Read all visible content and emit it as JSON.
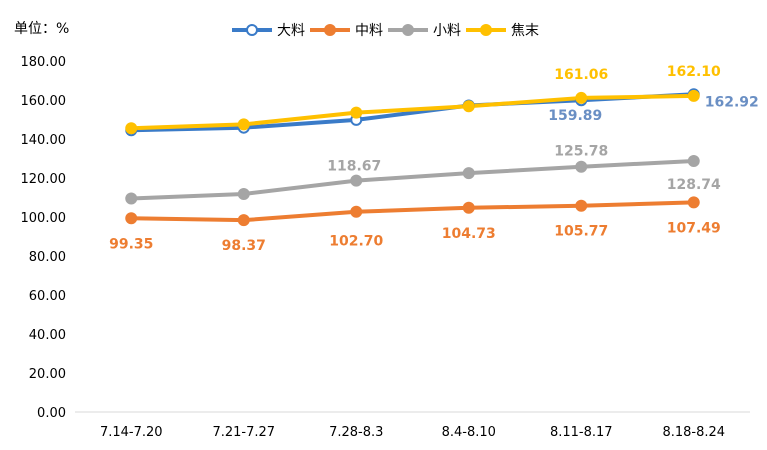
{
  "chart": {
    "unit_label": "单位：%"
  },
  "chart_data": {
    "type": "line",
    "categories": [
      "7.14-7.20",
      "7.21-7.27",
      "7.28-8.3",
      "8.4-8.10",
      "8.11-8.17",
      "8.18-8.24"
    ],
    "ylim": [
      0,
      180
    ],
    "yticks": [
      0,
      20,
      40,
      60,
      80,
      100,
      120,
      140,
      160,
      180
    ],
    "ytick_labels": [
      "0.00",
      "20.00",
      "40.00",
      "60.00",
      "80.00",
      "100.00",
      "120.00",
      "140.00",
      "160.00",
      "180.00"
    ],
    "grid": false,
    "legend_position": "top-center",
    "series": [
      {
        "name": "大料",
        "color": "#3A7BC8",
        "label_color": "#6A8FC4",
        "marker": "open",
        "values": [
          144.5,
          145.8,
          149.8,
          157.2,
          159.89,
          162.92
        ],
        "labels": [
          "",
          "",
          "",
          "",
          "159.89",
          "162.92"
        ]
      },
      {
        "name": "中料",
        "color": "#ED7D31",
        "label_color": "#ED7D31",
        "marker": "filled",
        "values": [
          99.35,
          98.37,
          102.7,
          104.73,
          105.77,
          107.49
        ],
        "labels": [
          "99.35",
          "98.37",
          "102.70",
          "104.73",
          "105.77",
          "107.49"
        ]
      },
      {
        "name": "小料",
        "color": "#A5A5A5",
        "label_color": "#A5A5A5",
        "marker": "filled",
        "values": [
          109.5,
          111.8,
          118.67,
          122.5,
          125.78,
          128.74
        ],
        "labels": [
          "",
          "",
          "118.67",
          "",
          "125.78",
          "128.74"
        ]
      },
      {
        "name": "焦末",
        "color": "#FFC000",
        "label_color": "#FFC000",
        "marker": "filled",
        "values": [
          145.5,
          147.5,
          153.5,
          156.8,
          161.06,
          162.1
        ],
        "labels": [
          "",
          "",
          "",
          "",
          "161.06",
          "162.10"
        ]
      }
    ]
  }
}
